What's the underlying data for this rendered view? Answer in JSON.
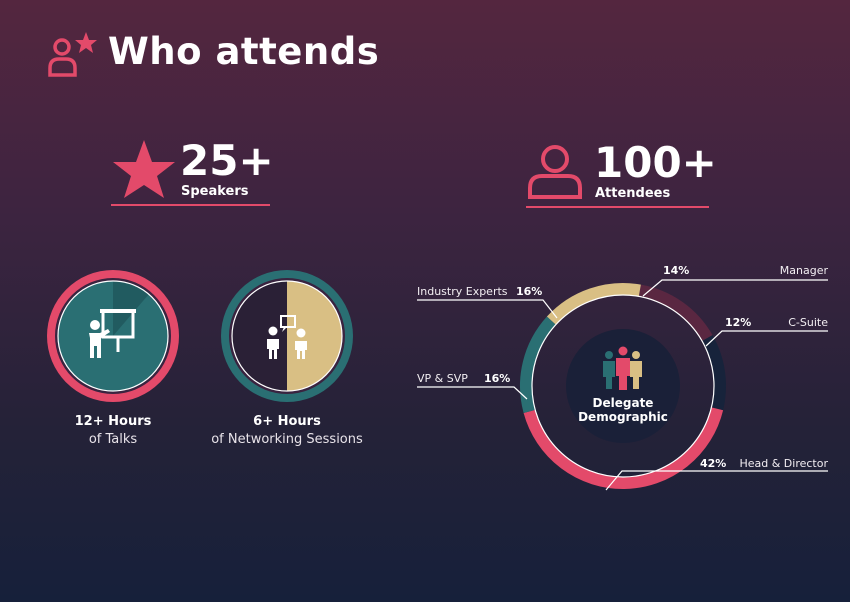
{
  "header": {
    "title": "Who attends",
    "icon": "user-star-icon"
  },
  "stats": {
    "speakers": {
      "value": "25+",
      "label": "Speakers",
      "icon": "star-icon"
    },
    "attendees": {
      "value": "100+",
      "label": "Attendees",
      "icon": "user-icon"
    }
  },
  "hours": {
    "talks": {
      "line1": "12+ Hours",
      "line2": "of Talks",
      "icon": "presenter-icon"
    },
    "networking": {
      "line1": "6+ Hours",
      "line2": "of Networking Sessions",
      "icon": "networking-icon"
    }
  },
  "colors": {
    "accent": "#e34a6a",
    "teal": "#2a6f73",
    "sand": "#d9bf84",
    "navy": "#17233b",
    "maroon": "#5a2741"
  },
  "chart_data": {
    "type": "pie",
    "center_label": [
      "Delegate",
      "Demographic"
    ],
    "slices": [
      {
        "label": "Manager",
        "value": 14,
        "display": "14%",
        "color": "#5a2741"
      },
      {
        "label": "C-Suite",
        "value": 12,
        "display": "12%",
        "color": "#17233b"
      },
      {
        "label": "Head & Director",
        "value": 42,
        "display": "42%",
        "color": "#e34a6a"
      },
      {
        "label": "VP & SVP",
        "value": 16,
        "display": "16%",
        "color": "#2a6f73"
      },
      {
        "label": "Industry Experts",
        "value": 16,
        "display": "16%",
        "color": "#d9bf84"
      }
    ]
  }
}
